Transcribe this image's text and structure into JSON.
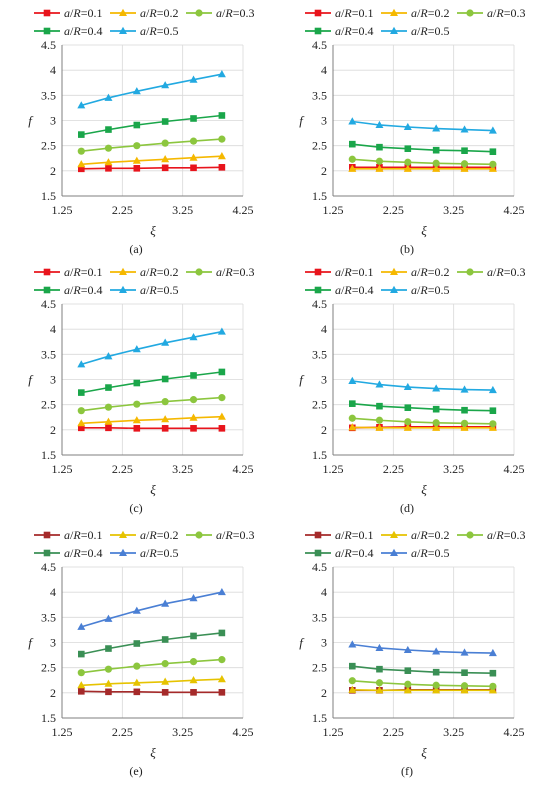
{
  "chart_data": [
    {
      "panel": "a",
      "caption": "(a)",
      "type": "line",
      "ylabel": "f",
      "xlabel": "ξ",
      "xlim": [
        1.25,
        4.25
      ],
      "ylim": [
        1.5,
        4.5
      ],
      "xticks": [
        "1.25",
        "2.25",
        "3.25",
        "4.25"
      ],
      "yticks": [
        "1.5",
        "2",
        "2.5",
        "3",
        "3.5",
        "4",
        "4.5"
      ],
      "x": [
        1.57,
        2.02,
        2.49,
        2.96,
        3.43,
        3.9
      ],
      "series": [
        {
          "name": "a/R=0.1",
          "values": [
            2.04,
            2.05,
            2.05,
            2.06,
            2.06,
            2.07
          ]
        },
        {
          "name": "a/R=0.2",
          "values": [
            2.13,
            2.17,
            2.2,
            2.23,
            2.26,
            2.29
          ]
        },
        {
          "name": "a/R=0.3",
          "values": [
            2.39,
            2.45,
            2.5,
            2.55,
            2.59,
            2.63
          ]
        },
        {
          "name": "a/R=0.4",
          "values": [
            2.72,
            2.82,
            2.91,
            2.98,
            3.04,
            3.1
          ]
        },
        {
          "name": "a/R=0.5",
          "values": [
            3.3,
            3.45,
            3.58,
            3.7,
            3.81,
            3.92
          ]
        }
      ]
    },
    {
      "panel": "b",
      "caption": "(b)",
      "type": "line",
      "ylabel": "f",
      "xlabel": "ξ",
      "xlim": [
        1.25,
        4.25
      ],
      "ylim": [
        1.5,
        4.5
      ],
      "xticks": [
        "1.25",
        "2.25",
        "3.25",
        "4.25"
      ],
      "yticks": [
        "1.5",
        "2",
        "2.5",
        "3",
        "3.5",
        "4",
        "4.5"
      ],
      "x": [
        1.57,
        2.02,
        2.49,
        2.96,
        3.43,
        3.9
      ],
      "series": [
        {
          "name": "a/R=0.1",
          "values": [
            2.07,
            2.07,
            2.07,
            2.07,
            2.07,
            2.07
          ]
        },
        {
          "name": "a/R=0.2",
          "values": [
            2.04,
            2.04,
            2.04,
            2.04,
            2.04,
            2.04
          ]
        },
        {
          "name": "a/R=0.3",
          "values": [
            2.23,
            2.19,
            2.17,
            2.15,
            2.14,
            2.13
          ]
        },
        {
          "name": "a/R=0.4",
          "values": [
            2.53,
            2.47,
            2.44,
            2.41,
            2.4,
            2.38
          ]
        },
        {
          "name": "a/R=0.5",
          "values": [
            2.98,
            2.91,
            2.87,
            2.84,
            2.82,
            2.8
          ]
        }
      ]
    },
    {
      "panel": "c",
      "caption": "(c)",
      "type": "line",
      "ylabel": "f",
      "xlabel": "ξ",
      "xlim": [
        1.25,
        4.25
      ],
      "ylim": [
        1.5,
        4.5
      ],
      "xticks": [
        "1.25",
        "2.25",
        "3.25",
        "4.25"
      ],
      "yticks": [
        "1.5",
        "2",
        "2.5",
        "3",
        "3.5",
        "4",
        "4.5"
      ],
      "x": [
        1.57,
        2.02,
        2.49,
        2.96,
        3.43,
        3.9
      ],
      "series": [
        {
          "name": "a/R=0.1",
          "values": [
            2.04,
            2.04,
            2.03,
            2.03,
            2.03,
            2.03
          ]
        },
        {
          "name": "a/R=0.2",
          "values": [
            2.13,
            2.16,
            2.19,
            2.21,
            2.24,
            2.26
          ]
        },
        {
          "name": "a/R=0.3",
          "values": [
            2.38,
            2.45,
            2.51,
            2.56,
            2.6,
            2.64
          ]
        },
        {
          "name": "a/R=0.4",
          "values": [
            2.74,
            2.84,
            2.93,
            3.01,
            3.08,
            3.15
          ]
        },
        {
          "name": "a/R=0.5",
          "values": [
            3.3,
            3.46,
            3.6,
            3.73,
            3.84,
            3.95
          ]
        }
      ]
    },
    {
      "panel": "d",
      "caption": "(d)",
      "type": "line",
      "ylabel": "f",
      "xlabel": "ξ",
      "xlim": [
        1.25,
        4.25
      ],
      "ylim": [
        1.5,
        4.5
      ],
      "xticks": [
        "1.25",
        "2.25",
        "3.25",
        "4.25"
      ],
      "yticks": [
        "1.5",
        "2",
        "2.5",
        "3",
        "3.5",
        "4",
        "4.5"
      ],
      "x": [
        1.57,
        2.02,
        2.49,
        2.96,
        3.43,
        3.9
      ],
      "series": [
        {
          "name": "a/R=0.1",
          "values": [
            2.04,
            2.05,
            2.06,
            2.06,
            2.06,
            2.06
          ]
        },
        {
          "name": "a/R=0.2",
          "values": [
            2.05,
            2.04,
            2.04,
            2.04,
            2.04,
            2.04
          ]
        },
        {
          "name": "a/R=0.3",
          "values": [
            2.23,
            2.19,
            2.16,
            2.14,
            2.13,
            2.12
          ]
        },
        {
          "name": "a/R=0.4",
          "values": [
            2.52,
            2.47,
            2.44,
            2.41,
            2.39,
            2.38
          ]
        },
        {
          "name": "a/R=0.5",
          "values": [
            2.97,
            2.9,
            2.85,
            2.82,
            2.8,
            2.79
          ]
        }
      ]
    },
    {
      "panel": "e",
      "caption": "(e)",
      "type": "line",
      "ylabel": "f",
      "xlabel": "ξ",
      "xlim": [
        1.25,
        4.25
      ],
      "ylim": [
        1.5,
        4.5
      ],
      "xticks": [
        "1.25",
        "2.25",
        "3.25",
        "4.25"
      ],
      "yticks": [
        "1.5",
        "2",
        "2.5",
        "3",
        "3.5",
        "4",
        "4.5"
      ],
      "x": [
        1.57,
        2.02,
        2.49,
        2.96,
        3.43,
        3.9
      ],
      "series": [
        {
          "name": "a/R=0.1",
          "values": [
            2.03,
            2.02,
            2.02,
            2.01,
            2.01,
            2.01
          ]
        },
        {
          "name": "a/R=0.2",
          "values": [
            2.15,
            2.18,
            2.2,
            2.22,
            2.25,
            2.27
          ]
        },
        {
          "name": "a/R=0.3",
          "values": [
            2.4,
            2.47,
            2.53,
            2.58,
            2.62,
            2.66
          ]
        },
        {
          "name": "a/R=0.4",
          "values": [
            2.77,
            2.88,
            2.98,
            3.06,
            3.13,
            3.19
          ]
        },
        {
          "name": "a/R=0.5",
          "values": [
            3.31,
            3.47,
            3.63,
            3.77,
            3.88,
            4.0
          ]
        }
      ]
    },
    {
      "panel": "f",
      "caption": "(f)",
      "type": "line",
      "ylabel": "f",
      "xlabel": "ξ",
      "xlim": [
        1.25,
        4.25
      ],
      "ylim": [
        1.5,
        4.5
      ],
      "xticks": [
        "1.25",
        "2.25",
        "3.25",
        "4.25"
      ],
      "yticks": [
        "1.5",
        "2",
        "2.5",
        "3",
        "3.5",
        "4",
        "4.5"
      ],
      "x": [
        1.57,
        2.02,
        2.49,
        2.96,
        3.43,
        3.9
      ],
      "series": [
        {
          "name": "a/R=0.1",
          "values": [
            2.05,
            2.05,
            2.06,
            2.06,
            2.06,
            2.06
          ]
        },
        {
          "name": "a/R=0.2",
          "values": [
            2.06,
            2.05,
            2.05,
            2.05,
            2.05,
            2.05
          ]
        },
        {
          "name": "a/R=0.3",
          "values": [
            2.24,
            2.2,
            2.17,
            2.15,
            2.14,
            2.13
          ]
        },
        {
          "name": "a/R=0.4",
          "values": [
            2.53,
            2.47,
            2.44,
            2.41,
            2.4,
            2.39
          ]
        },
        {
          "name": "a/R=0.5",
          "values": [
            2.96,
            2.89,
            2.85,
            2.82,
            2.8,
            2.79
          ]
        }
      ]
    }
  ],
  "series_style": [
    {
      "color": "#e8141c",
      "marker": "square"
    },
    {
      "color": "#f5b800",
      "marker": "triangle"
    },
    {
      "color": "#8cc63e",
      "marker": "circle"
    },
    {
      "color": "#1aa64a",
      "marker": "square"
    },
    {
      "color": "#22a9e1",
      "marker": "triangle"
    }
  ],
  "series_style_alt": [
    {
      "color": "#a52a2a",
      "marker": "square"
    },
    {
      "color": "#e6c300",
      "marker": "triangle"
    },
    {
      "color": "#8cc63e",
      "marker": "circle"
    },
    {
      "color": "#3a8f55",
      "marker": "square"
    },
    {
      "color": "#4a7fd4",
      "marker": "triangle"
    }
  ],
  "legend_ratio_symbol": "a",
  "legend_ratio_denominator": "R",
  "legend_values": [
    "=0.1",
    "=0.2",
    "=0.3",
    "=0.4",
    "=0.5"
  ],
  "gridlines": true
}
